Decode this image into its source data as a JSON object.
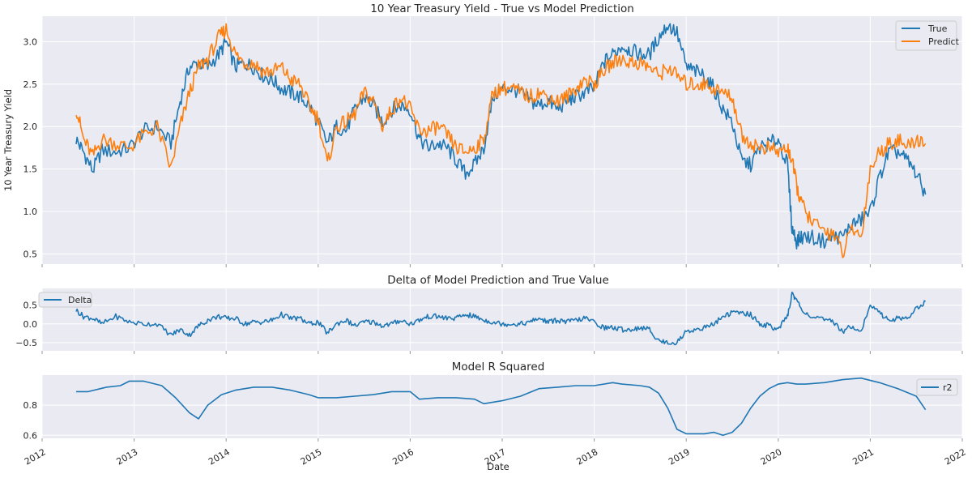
{
  "chart_data": [
    {
      "type": "line",
      "title": "10 Year Treasury Yield - True vs Model Prediction",
      "xlabel": "",
      "ylabel": "10 Year Treasury Yield",
      "xlim": [
        2012.0,
        2022.0
      ],
      "ylim": [
        0.38,
        3.3
      ],
      "yticks": [
        0.5,
        1.0,
        1.5,
        2.0,
        2.5,
        3.0
      ],
      "ytick_labels": [
        "0.5",
        "1.0",
        "1.5",
        "2.0",
        "2.5",
        "3.0"
      ],
      "grid": true,
      "legend_position": "top-right",
      "series": [
        {
          "name": "True",
          "color": "#1f77b4",
          "x": [
            2012.37,
            2012.45,
            2012.55,
            2012.65,
            2012.8,
            2012.95,
            2013.1,
            2013.25,
            2013.4,
            2013.5,
            2013.6,
            2013.7,
            2013.8,
            2013.92,
            2014.0,
            2014.1,
            2014.2,
            2014.3,
            2014.4,
            2014.5,
            2014.6,
            2014.7,
            2014.8,
            2014.9,
            2015.0,
            2015.1,
            2015.2,
            2015.3,
            2015.4,
            2015.5,
            2015.6,
            2015.7,
            2015.8,
            2015.9,
            2016.0,
            2016.1,
            2016.2,
            2016.3,
            2016.4,
            2016.5,
            2016.6,
            2016.7,
            2016.8,
            2016.9,
            2017.0,
            2017.1,
            2017.2,
            2017.3,
            2017.4,
            2017.5,
            2017.6,
            2017.7,
            2017.8,
            2017.9,
            2018.0,
            2018.1,
            2018.2,
            2018.3,
            2018.4,
            2018.5,
            2018.6,
            2018.7,
            2018.8,
            2018.9,
            2019.0,
            2019.1,
            2019.2,
            2019.3,
            2019.4,
            2019.5,
            2019.6,
            2019.7,
            2019.8,
            2019.9,
            2020.0,
            2020.1,
            2020.15,
            2020.2,
            2020.25,
            2020.35,
            2020.5,
            2020.6,
            2020.7,
            2020.8,
            2020.9,
            2021.0,
            2021.1,
            2021.2,
            2021.3,
            2021.4,
            2021.5,
            2021.6
          ],
          "values": [
            1.85,
            1.7,
            1.48,
            1.72,
            1.7,
            1.75,
            1.95,
            2.0,
            1.8,
            2.3,
            2.7,
            2.75,
            2.7,
            2.85,
            3.0,
            2.7,
            2.75,
            2.7,
            2.6,
            2.55,
            2.45,
            2.4,
            2.35,
            2.25,
            2.05,
            1.8,
            2.0,
            1.95,
            2.2,
            2.35,
            2.25,
            2.05,
            2.2,
            2.25,
            2.2,
            1.85,
            1.75,
            1.8,
            1.75,
            1.6,
            1.45,
            1.55,
            1.75,
            2.35,
            2.45,
            2.45,
            2.4,
            2.3,
            2.25,
            2.3,
            2.2,
            2.3,
            2.35,
            2.4,
            2.45,
            2.75,
            2.85,
            2.95,
            2.9,
            2.85,
            2.85,
            3.05,
            3.2,
            3.1,
            2.7,
            2.65,
            2.6,
            2.45,
            2.2,
            2.05,
            1.6,
            1.55,
            1.75,
            1.8,
            1.85,
            1.55,
            0.8,
            0.65,
            0.7,
            0.7,
            0.65,
            0.7,
            0.7,
            0.85,
            0.9,
            1.0,
            1.4,
            1.7,
            1.7,
            1.6,
            1.45,
            1.2
          ]
        },
        {
          "name": "Predict",
          "color": "#ff7f0e",
          "x": [
            2012.37,
            2012.45,
            2012.55,
            2012.65,
            2012.8,
            2012.95,
            2013.1,
            2013.25,
            2013.4,
            2013.5,
            2013.6,
            2013.7,
            2013.8,
            2013.92,
            2014.0,
            2014.1,
            2014.2,
            2014.3,
            2014.4,
            2014.5,
            2014.6,
            2014.7,
            2014.8,
            2014.9,
            2015.0,
            2015.1,
            2015.2,
            2015.3,
            2015.4,
            2015.5,
            2015.6,
            2015.7,
            2015.8,
            2015.9,
            2016.0,
            2016.1,
            2016.2,
            2016.3,
            2016.4,
            2016.5,
            2016.6,
            2016.7,
            2016.8,
            2016.9,
            2017.0,
            2017.1,
            2017.2,
            2017.3,
            2017.4,
            2017.5,
            2017.6,
            2017.7,
            2017.8,
            2017.9,
            2018.0,
            2018.1,
            2018.2,
            2018.3,
            2018.4,
            2018.5,
            2018.6,
            2018.7,
            2018.8,
            2018.9,
            2019.0,
            2019.1,
            2019.2,
            2019.3,
            2019.4,
            2019.5,
            2019.6,
            2019.7,
            2019.8,
            2019.9,
            2020.0,
            2020.1,
            2020.15,
            2020.2,
            2020.25,
            2020.35,
            2020.5,
            2020.6,
            2020.7,
            2020.8,
            2020.9,
            2021.0,
            2021.1,
            2021.2,
            2021.3,
            2021.4,
            2021.5,
            2021.6
          ],
          "values": [
            2.22,
            1.85,
            1.65,
            1.85,
            1.8,
            1.75,
            1.9,
            2.0,
            1.5,
            2.0,
            2.4,
            2.7,
            2.8,
            3.05,
            3.15,
            2.85,
            2.75,
            2.75,
            2.65,
            2.65,
            2.7,
            2.55,
            2.5,
            2.25,
            2.1,
            1.55,
            2.0,
            2.05,
            2.15,
            2.4,
            2.3,
            2.0,
            2.2,
            2.35,
            2.2,
            1.95,
            1.95,
            2.0,
            1.9,
            1.75,
            1.7,
            1.75,
            1.85,
            2.4,
            2.45,
            2.45,
            2.4,
            2.35,
            2.4,
            2.35,
            2.3,
            2.35,
            2.45,
            2.55,
            2.5,
            2.65,
            2.75,
            2.8,
            2.75,
            2.75,
            2.7,
            2.6,
            2.7,
            2.6,
            2.5,
            2.5,
            2.5,
            2.45,
            2.4,
            2.35,
            1.9,
            1.8,
            1.75,
            1.75,
            1.7,
            1.75,
            1.6,
            1.3,
            1.1,
            0.9,
            0.75,
            0.75,
            0.5,
            0.8,
            0.7,
            1.5,
            1.7,
            1.8,
            1.85,
            1.75,
            1.85,
            1.8
          ]
        }
      ]
    },
    {
      "type": "line",
      "title": "Delta of Model Prediction and True Value",
      "xlabel": "",
      "ylabel": "",
      "xlim": [
        2012.0,
        2022.0
      ],
      "ylim": [
        -0.72,
        0.95
      ],
      "yticks": [
        -0.5,
        0.0,
        0.5
      ],
      "ytick_labels": [
        "−0.5",
        "0.0",
        "0.5"
      ],
      "grid": true,
      "legend_position": "top-left",
      "series": [
        {
          "name": "Delta",
          "color": "#1f77b4",
          "x": [
            2012.37,
            2012.45,
            2012.55,
            2012.65,
            2012.8,
            2012.95,
            2013.1,
            2013.25,
            2013.4,
            2013.5,
            2013.6,
            2013.7,
            2013.8,
            2013.92,
            2014.0,
            2014.1,
            2014.2,
            2014.3,
            2014.4,
            2014.5,
            2014.6,
            2014.7,
            2014.8,
            2014.9,
            2015.0,
            2015.1,
            2015.2,
            2015.3,
            2015.4,
            2015.5,
            2015.6,
            2015.7,
            2015.8,
            2015.9,
            2016.0,
            2016.1,
            2016.2,
            2016.3,
            2016.4,
            2016.5,
            2016.6,
            2016.7,
            2016.8,
            2016.9,
            2017.0,
            2017.1,
            2017.2,
            2017.3,
            2017.4,
            2017.5,
            2017.6,
            2017.7,
            2017.8,
            2017.9,
            2018.0,
            2018.1,
            2018.2,
            2018.3,
            2018.4,
            2018.5,
            2018.6,
            2018.7,
            2018.8,
            2018.9,
            2019.0,
            2019.1,
            2019.2,
            2019.3,
            2019.4,
            2019.5,
            2019.6,
            2019.7,
            2019.8,
            2019.9,
            2020.0,
            2020.1,
            2020.15,
            2020.2,
            2020.25,
            2020.35,
            2020.5,
            2020.6,
            2020.7,
            2020.8,
            2020.9,
            2021.0,
            2021.1,
            2021.2,
            2021.3,
            2021.4,
            2021.5,
            2021.6
          ],
          "values": [
            0.37,
            0.2,
            0.15,
            0.0,
            0.2,
            0.05,
            0.0,
            0.0,
            -0.3,
            -0.15,
            -0.3,
            -0.05,
            0.1,
            0.2,
            0.15,
            0.15,
            0.0,
            0.05,
            0.05,
            0.1,
            0.25,
            0.15,
            0.15,
            0.0,
            0.05,
            -0.25,
            0.0,
            0.1,
            -0.05,
            0.05,
            0.05,
            -0.05,
            0.0,
            0.1,
            0.0,
            0.1,
            0.2,
            0.2,
            0.15,
            0.15,
            0.25,
            0.2,
            0.1,
            0.05,
            0.0,
            0.0,
            0.0,
            0.05,
            0.15,
            0.05,
            0.1,
            0.05,
            0.1,
            0.15,
            0.05,
            -0.1,
            -0.1,
            -0.15,
            -0.15,
            -0.1,
            -0.15,
            -0.45,
            -0.5,
            -0.5,
            -0.2,
            -0.15,
            -0.1,
            0.0,
            0.2,
            0.3,
            0.3,
            0.25,
            0.0,
            -0.05,
            -0.15,
            0.2,
            0.8,
            0.65,
            0.4,
            0.2,
            0.1,
            0.05,
            -0.2,
            -0.05,
            -0.2,
            0.5,
            0.3,
            0.1,
            0.15,
            0.15,
            0.4,
            0.6
          ]
        }
      ]
    },
    {
      "type": "line",
      "title": "Model R Squared",
      "xlabel": "Date",
      "ylabel": "",
      "xlim": [
        2012.0,
        2022.0
      ],
      "ylim": [
        0.58,
        1.0
      ],
      "yticks": [
        0.6,
        0.8
      ],
      "ytick_labels": [
        "0.6",
        "0.8"
      ],
      "xticks": [
        2012,
        2013,
        2014,
        2015,
        2016,
        2017,
        2018,
        2019,
        2020,
        2021,
        2022
      ],
      "xtick_labels": [
        "2012",
        "2013",
        "2014",
        "2015",
        "2016",
        "2017",
        "2018",
        "2019",
        "2020",
        "2021",
        "2022"
      ],
      "grid": true,
      "legend_position": "top-right",
      "series": [
        {
          "name": "r2",
          "color": "#1f77b4",
          "x": [
            2012.37,
            2012.5,
            2012.7,
            2012.85,
            2012.95,
            2013.1,
            2013.3,
            2013.45,
            2013.6,
            2013.7,
            2013.8,
            2013.95,
            2014.1,
            2014.3,
            2014.5,
            2014.7,
            2014.9,
            2015.0,
            2015.2,
            2015.4,
            2015.6,
            2015.8,
            2016.0,
            2016.1,
            2016.3,
            2016.5,
            2016.7,
            2016.8,
            2017.0,
            2017.2,
            2017.4,
            2017.6,
            2017.8,
            2018.0,
            2018.2,
            2018.3,
            2018.5,
            2018.6,
            2018.7,
            2018.8,
            2018.9,
            2019.0,
            2019.1,
            2019.2,
            2019.3,
            2019.4,
            2019.5,
            2019.6,
            2019.7,
            2019.8,
            2019.9,
            2020.0,
            2020.1,
            2020.2,
            2020.3,
            2020.5,
            2020.7,
            2020.9,
            2021.1,
            2021.3,
            2021.5,
            2021.6
          ],
          "values": [
            0.89,
            0.89,
            0.92,
            0.93,
            0.96,
            0.96,
            0.93,
            0.85,
            0.75,
            0.71,
            0.8,
            0.87,
            0.9,
            0.92,
            0.92,
            0.9,
            0.87,
            0.85,
            0.85,
            0.86,
            0.87,
            0.89,
            0.89,
            0.84,
            0.85,
            0.85,
            0.84,
            0.81,
            0.83,
            0.86,
            0.91,
            0.92,
            0.93,
            0.93,
            0.95,
            0.94,
            0.93,
            0.92,
            0.88,
            0.78,
            0.64,
            0.61,
            0.61,
            0.61,
            0.62,
            0.6,
            0.62,
            0.68,
            0.78,
            0.86,
            0.91,
            0.94,
            0.95,
            0.94,
            0.94,
            0.95,
            0.97,
            0.98,
            0.95,
            0.91,
            0.86,
            0.77
          ]
        }
      ]
    }
  ]
}
